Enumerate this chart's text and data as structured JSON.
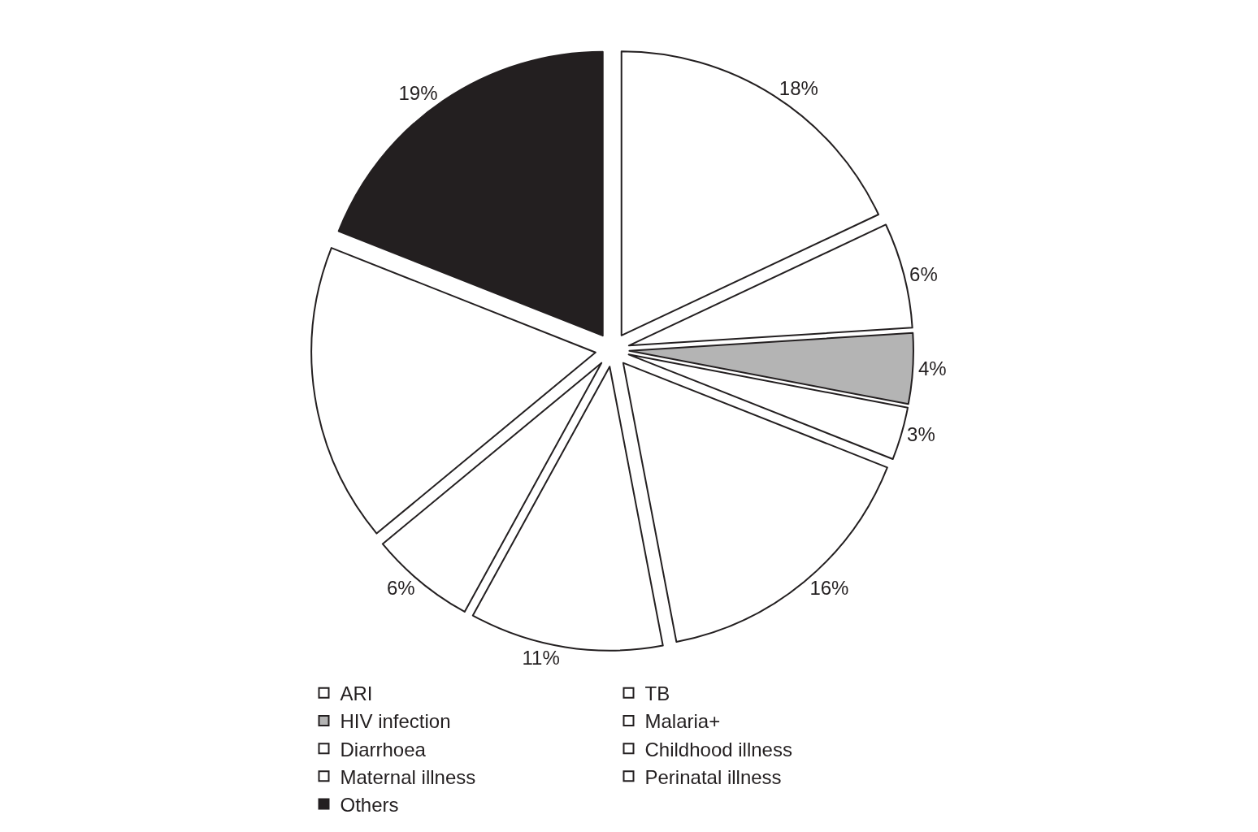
{
  "chart_data": {
    "type": "pie",
    "categories": [
      "ARI",
      "TB",
      "HIV infection",
      "Malaria+",
      "Diarrhoea",
      "Childhood illness",
      "Maternal illness",
      "Perinatal illness",
      "Others"
    ],
    "values": [
      18,
      6,
      4,
      3,
      16,
      11,
      6,
      17,
      19
    ],
    "value_labels": [
      "18%",
      "6%",
      "4%",
      "3%",
      "16%",
      "11%",
      "6%",
      null,
      "19%"
    ],
    "colors": [
      "#ffffff",
      "#ffffff",
      "#b4b4b4",
      "#ffffff",
      "#ffffff",
      "#ffffff",
      "#ffffff",
      "#ffffff",
      "#231f20"
    ],
    "legend": "bottom"
  }
}
